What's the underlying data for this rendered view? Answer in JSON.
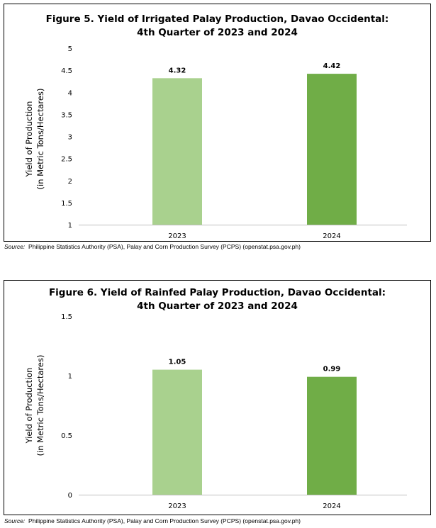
{
  "chart_data": [
    {
      "type": "bar",
      "title_line1": "Figure 5. Yield of Irrigated Palay Production, Davao Occidental:",
      "title_line2": "4th Quarter of 2023 and 2024",
      "ylabel_line1": "Yield of Production",
      "ylabel_line2": "(in Metric Tons/Hectares)",
      "xlabel": "",
      "categories": [
        "2023",
        "2024"
      ],
      "values": [
        4.32,
        4.42
      ],
      "value_labels": [
        "4.32",
        "4.42"
      ],
      "ylim": [
        1,
        5
      ],
      "yticks": [
        1,
        1.5,
        2,
        2.5,
        3,
        3.5,
        4,
        4.5,
        5
      ],
      "ytick_labels": [
        "1",
        "1.5",
        "2",
        "2.5",
        "3",
        "3.5",
        "4",
        "4.5",
        "5"
      ],
      "bar_colors": [
        "#a9d18e",
        "#70ad47"
      ],
      "grid": false,
      "legend": "none"
    },
    {
      "type": "bar",
      "title_line1": "Figure 6. Yield of Rainfed Palay Production, Davao Occidental:",
      "title_line2": "4th Quarter of 2023 and 2024",
      "ylabel_line1": "Yield of Production",
      "ylabel_line2": "(in Metric Tons/Hectares)",
      "xlabel": "",
      "categories": [
        "2023",
        "2024"
      ],
      "values": [
        1.05,
        0.99
      ],
      "value_labels": [
        "1.05",
        "0.99"
      ],
      "ylim": [
        0,
        1.5
      ],
      "yticks": [
        0,
        0.5,
        1,
        1.5
      ],
      "ytick_labels": [
        "0",
        "0.5",
        "1",
        "1.5"
      ],
      "bar_colors": [
        "#a9d18e",
        "#70ad47"
      ],
      "grid": false,
      "legend": "none"
    }
  ],
  "sources": [
    {
      "label": "Source:",
      "text": "Philippine Statistics Authority (PSA), Palay and Corn Production Survey (PCPS) (openstat.psa.gov.ph)"
    },
    {
      "label": "Source:",
      "text": "Philippine Statistics Authority (PSA), Palay and Corn Production Survey (PCPS) (openstat.psa.gov.ph)"
    }
  ]
}
